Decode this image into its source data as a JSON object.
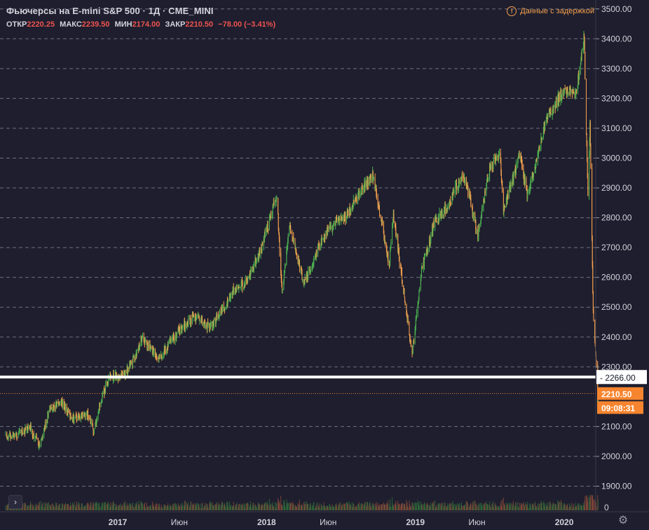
{
  "legend": {
    "title": "Фьючерсы на E-mini S&P 500 · 1Д · CME_MINI",
    "open_label": "ОТКР",
    "open": "2220.25",
    "high_label": "МАКС",
    "high": "2239.50",
    "low_label": "МИН",
    "low": "2174.00",
    "close_label": "ЗАКР",
    "close": "2210.50",
    "change": "−78.00 (−3.41%)"
  },
  "delay_notice": {
    "icon": "warning-circle-icon",
    "text": "Данные с задержкой"
  },
  "controls": {
    "collapse_icon": "chevron-right-icon",
    "collapse_glyph": "›",
    "settings_icon": "gear-icon",
    "settings_glyph": "⚙"
  },
  "colors": {
    "background": "#1e1e2e",
    "up": "#4caf50",
    "down": "#f6a04d",
    "grid": "#8a8a9a",
    "price_label": "#f7852f",
    "hline": "#ffffff",
    "text": "#d1d4dc"
  },
  "chart_data": {
    "type": "candlestick",
    "instrument": "Фьючерсы на E-mini S&P 500",
    "interval": "1Д",
    "exchange": "CME_MINI",
    "ylim": [
      1880,
      3530
    ],
    "y_ticks": [
      "3500.00",
      "3400.00",
      "3300.00",
      "3200.00",
      "3100.00",
      "3000.00",
      "2900.00",
      "2800.00",
      "2700.00",
      "2600.00",
      "2500.00",
      "2400.00",
      "2300.00",
      "2100.00",
      "2000.00",
      "1900.00"
    ],
    "x_ticks": [
      "2017",
      "Июн",
      "2018",
      "Июн",
      "2019",
      "Июн",
      "2020"
    ],
    "x_tick_dates": [
      "2017-01-01",
      "2017-06-01",
      "2018-01-01",
      "2018-06-01",
      "2019-01-01",
      "2019-06-01",
      "2020-01-01"
    ],
    "x_range": [
      "2016-04-01",
      "2020-04-01"
    ],
    "horizontal_line": {
      "value": 2266.0,
      "label": "2266.00"
    },
    "last_price": {
      "value": 2210.5,
      "label": "2210.50",
      "countdown": "09:08:31"
    },
    "volume_axis_label": "0",
    "price_path": [
      [
        "2016-04-01",
        2070
      ],
      [
        "2016-05-01",
        2075
      ],
      [
        "2016-06-01",
        2095
      ],
      [
        "2016-06-24",
        2030
      ],
      [
        "2016-07-15",
        2150
      ],
      [
        "2016-08-15",
        2185
      ],
      [
        "2016-09-09",
        2130
      ],
      [
        "2016-10-20",
        2140
      ],
      [
        "2016-11-04",
        2080
      ],
      [
        "2016-11-20",
        2190
      ],
      [
        "2016-12-13",
        2265
      ],
      [
        "2017-01-15",
        2270
      ],
      [
        "2017-02-15",
        2340
      ],
      [
        "2017-03-01",
        2395
      ],
      [
        "2017-04-15",
        2330
      ],
      [
        "2017-05-15",
        2395
      ],
      [
        "2017-06-15",
        2440
      ],
      [
        "2017-07-15",
        2470
      ],
      [
        "2017-08-15",
        2430
      ],
      [
        "2017-09-15",
        2495
      ],
      [
        "2017-10-15",
        2560
      ],
      [
        "2017-11-15",
        2590
      ],
      [
        "2017-12-15",
        2680
      ],
      [
        "2018-01-26",
        2875
      ],
      [
        "2018-02-08",
        2540
      ],
      [
        "2018-02-26",
        2780
      ],
      [
        "2018-04-02",
        2580
      ],
      [
        "2018-05-15",
        2720
      ],
      [
        "2018-06-15",
        2780
      ],
      [
        "2018-07-15",
        2800
      ],
      [
        "2018-08-30",
        2915
      ],
      [
        "2018-09-20",
        2940
      ],
      [
        "2018-10-29",
        2640
      ],
      [
        "2018-11-08",
        2810
      ],
      [
        "2018-12-24",
        2340
      ],
      [
        "2019-01-15",
        2610
      ],
      [
        "2019-02-15",
        2780
      ],
      [
        "2019-03-15",
        2830
      ],
      [
        "2019-04-30",
        2950
      ],
      [
        "2019-06-03",
        2740
      ],
      [
        "2019-06-30",
        2950
      ],
      [
        "2019-07-26",
        3025
      ],
      [
        "2019-08-05",
        2830
      ],
      [
        "2019-09-15",
        3010
      ],
      [
        "2019-10-03",
        2870
      ],
      [
        "2019-11-15",
        3120
      ],
      [
        "2019-12-31",
        3230
      ],
      [
        "2020-01-31",
        3225
      ],
      [
        "2020-02-19",
        3395
      ],
      [
        "2020-02-28",
        2860
      ],
      [
        "2020-03-04",
        3130
      ],
      [
        "2020-03-12",
        2480
      ],
      [
        "2020-03-20",
        2300
      ],
      [
        "2020-03-23",
        2175
      ],
      [
        "2020-03-24",
        2210.5
      ]
    ]
  }
}
